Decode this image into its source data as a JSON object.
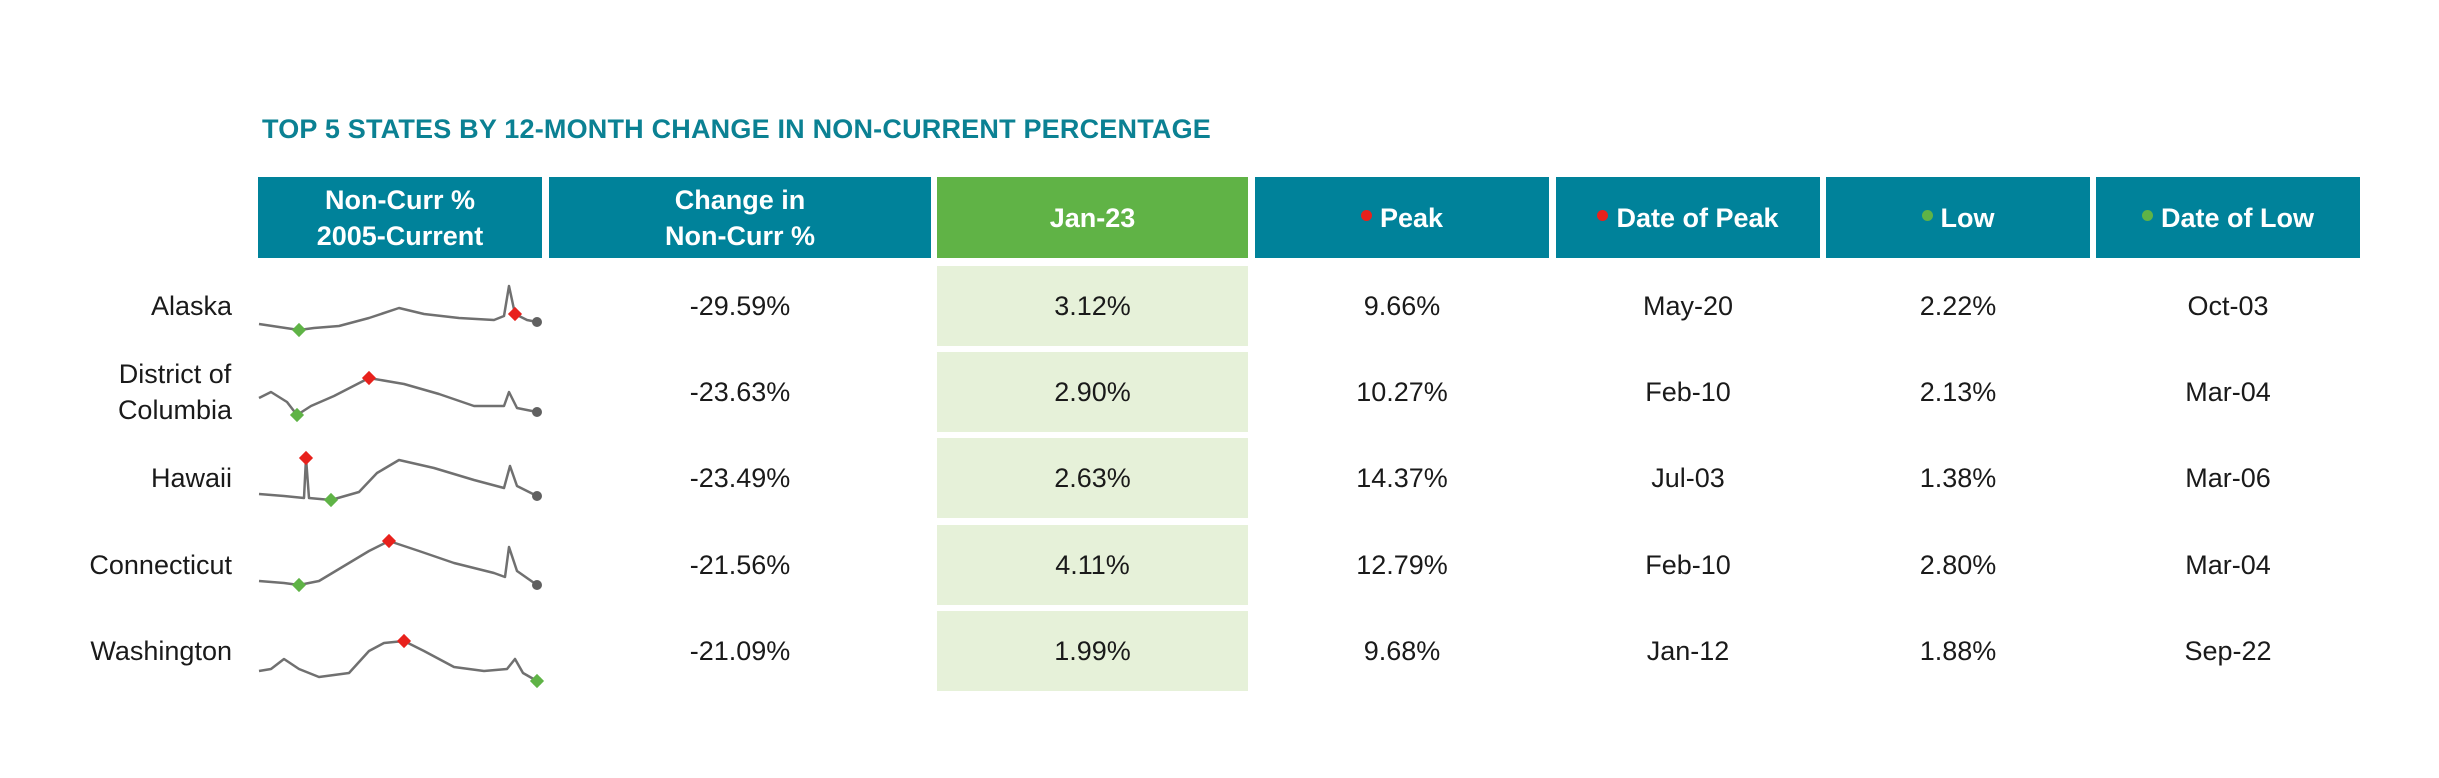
{
  "title": "TOP 5 STATES BY 12-MONTH CHANGE IN NON-CURRENT PERCENTAGE",
  "colors": {
    "header": "#00829a",
    "highlight_header": "#60b346",
    "highlight_cell": "#e6f1d9",
    "peak_marker": "#e8211c",
    "low_marker": "#5fb346",
    "spark_line": "#707070"
  },
  "headers": {
    "sparkline": [
      "Non-Curr %",
      "2005-Current"
    ],
    "change": [
      "Change in",
      "Non-Curr %"
    ],
    "current": "Jan-23",
    "peak": "Peak",
    "peak_date": "Date of Peak",
    "low": "Low",
    "low_date": "Date of Low"
  },
  "chart_data": {
    "type": "table",
    "series_note": "Non-Curr % sparkline per state, 2005-Current",
    "rows": [
      {
        "state": "Alaska",
        "change": "-29.59%",
        "current": "3.12%",
        "peak": "9.66%",
        "peak_date": "May-20",
        "low": "2.22%",
        "low_date": "Oct-03"
      },
      {
        "state": "District of Columbia",
        "change": "-23.63%",
        "current": "2.90%",
        "peak": "10.27%",
        "peak_date": "Feb-10",
        "low": "2.13%",
        "low_date": "Mar-04"
      },
      {
        "state": "Hawaii",
        "change": "-23.49%",
        "current": "2.63%",
        "peak": "14.37%",
        "peak_date": "Jul-03",
        "low": "1.38%",
        "low_date": "Mar-06"
      },
      {
        "state": "Connecticut",
        "change": "-21.56%",
        "current": "4.11%",
        "peak": "12.79%",
        "peak_date": "Feb-10",
        "low": "2.80%",
        "low_date": "Mar-04"
      },
      {
        "state": "Washington",
        "change": "-21.09%",
        "current": "1.99%",
        "peak": "9.68%",
        "peak_date": "Jan-12",
        "low": "1.88%",
        "low_date": "Sep-22"
      }
    ]
  }
}
